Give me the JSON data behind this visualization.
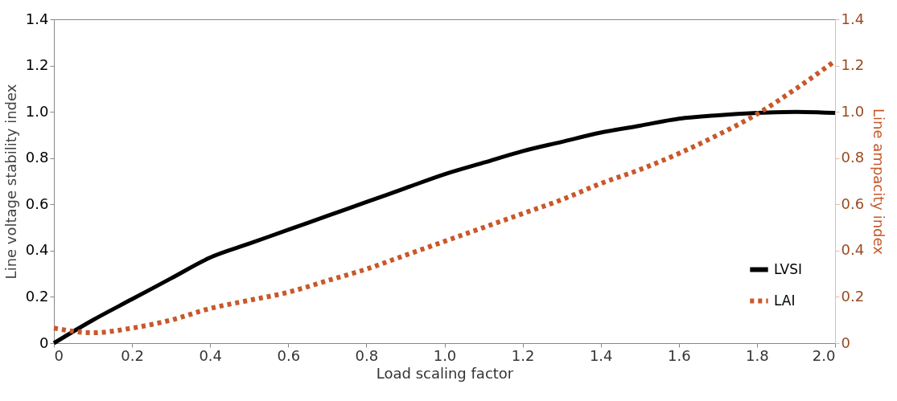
{
  "chart_data": {
    "type": "line",
    "xlabel": "Load scaling factor",
    "ylabel": "Line voltage stability index",
    "y2label": "Line ampacity index",
    "x": [
      0,
      0.1,
      0.2,
      0.3,
      0.4,
      0.5,
      0.6,
      0.7,
      0.8,
      0.9,
      1.0,
      1.1,
      1.2,
      1.3,
      1.4,
      1.5,
      1.6,
      1.7,
      1.8,
      1.9,
      2.0
    ],
    "series": [
      {
        "name": "LVSI",
        "color": "#000000",
        "line_style": "solid",
        "values": [
          0,
          0.1,
          0.19,
          0.28,
          0.37,
          0.43,
          0.49,
          0.55,
          0.61,
          0.67,
          0.73,
          0.78,
          0.83,
          0.87,
          0.91,
          0.94,
          0.97,
          0.985,
          0.995,
          1.0,
          0.995
        ]
      },
      {
        "name": "LAI",
        "color": "#c8582a",
        "line_style": "dotted",
        "axis": "y2",
        "values": [
          0.065,
          0.045,
          0.065,
          0.1,
          0.15,
          0.185,
          0.22,
          0.27,
          0.32,
          0.38,
          0.44,
          0.5,
          0.56,
          0.62,
          0.69,
          0.75,
          0.82,
          0.9,
          0.99,
          1.1,
          1.22
        ]
      }
    ],
    "xlim": [
      0,
      2.0
    ],
    "xticks": [
      {
        "value": 0,
        "label": "0"
      },
      0.2,
      0.4,
      0.6,
      0.8,
      {
        "value": 1,
        "label": "1.0"
      },
      1.2,
      1.4,
      1.6,
      1.8,
      {
        "value": 2,
        "label": "2.0"
      }
    ],
    "ylim": [
      0,
      1.4
    ],
    "yticks": [
      {
        "value": 0,
        "label": "0"
      },
      0.2,
      0.4,
      0.6,
      0.8,
      {
        "value": 1,
        "label": "1.0"
      },
      1.2,
      1.4
    ],
    "y2lim": [
      0,
      1.4
    ],
    "y2ticks": [
      {
        "value": 0,
        "label": "0"
      },
      0.2,
      0.4,
      0.6,
      0.8,
      {
        "value": 1,
        "label": "1.0"
      },
      1.2,
      1.4
    ],
    "legend": "bottom right",
    "grid": false
  }
}
